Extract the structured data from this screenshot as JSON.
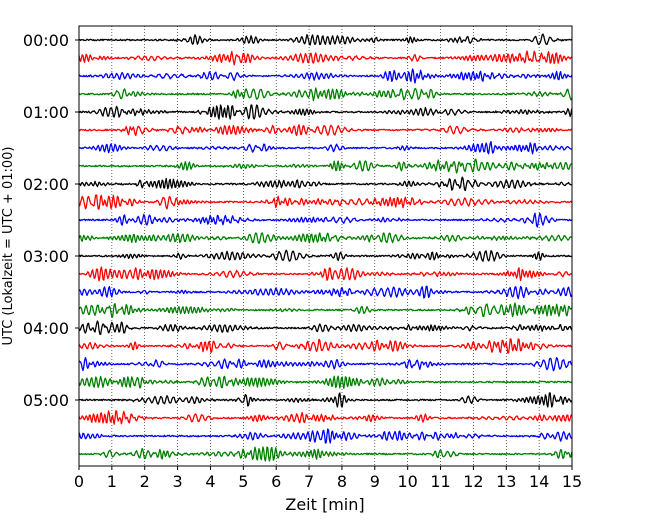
{
  "chart_data": {
    "type": "line",
    "subtype": "helicorder",
    "xlabel": "Zeit  [min]",
    "ylabel": "UTC (Lokalzeit = UTC + 01:00)",
    "xlim": [
      0,
      15
    ],
    "x_ticks": [
      "0",
      "1",
      "2",
      "3",
      "4",
      "5",
      "6",
      "7",
      "8",
      "9",
      "10",
      "11",
      "12",
      "13",
      "14",
      "15"
    ],
    "y_tick_labels": [
      "00:00",
      "01:00",
      "02:00",
      "03:00",
      "04:00",
      "05:00"
    ],
    "trace_interval_minutes": 15,
    "trace_count": 24,
    "trace_colors": [
      "#000000",
      "#ff0000",
      "#0000ff",
      "#008000"
    ],
    "vertical_grid": true,
    "grid_style": "dotted",
    "background": "#ffffff"
  }
}
